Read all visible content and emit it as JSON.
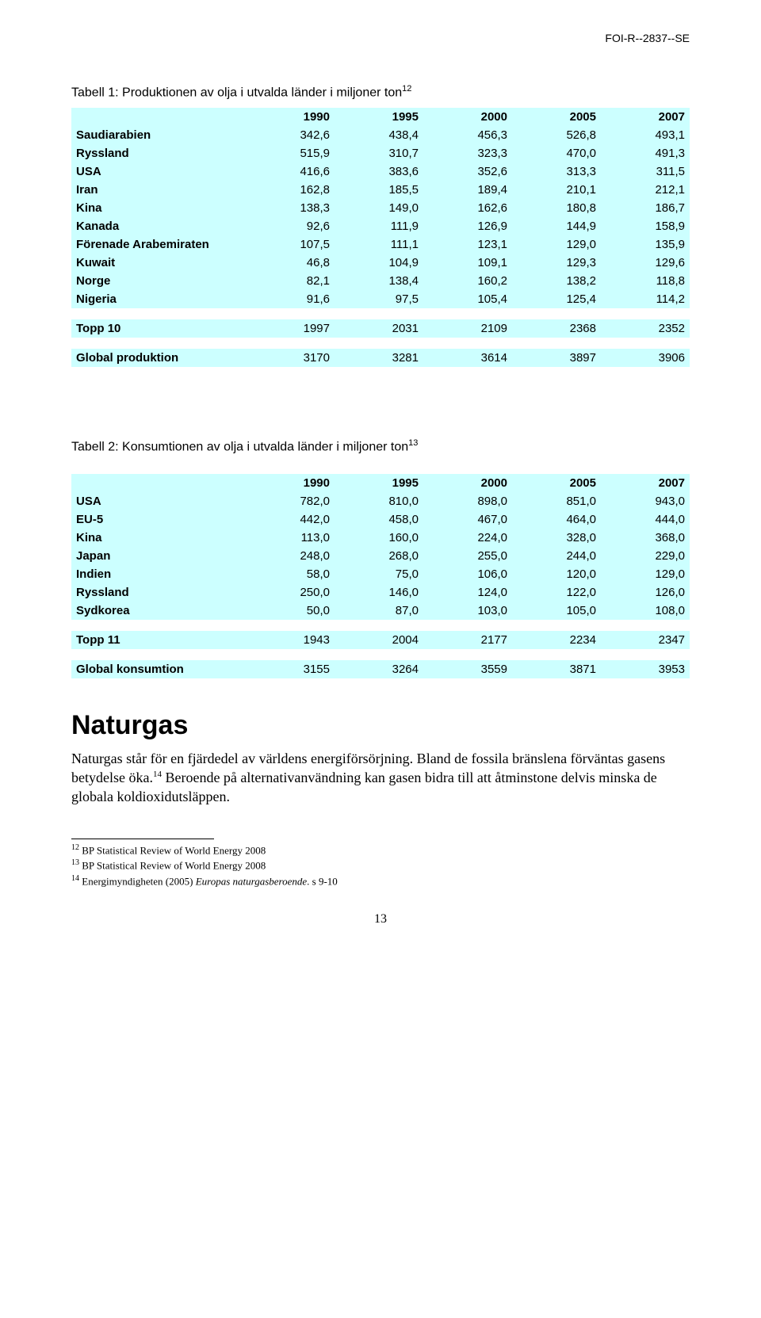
{
  "header": "FOI-R--2837--SE",
  "page_number": "13",
  "colors": {
    "row_bg": "#ccffff",
    "text": "#000000",
    "page_bg": "#ffffff"
  },
  "table1": {
    "title_prefix": "Tabell 1: Produktionen av olja i utvalda länder i miljoner ton",
    "title_sup": "12",
    "columns": [
      "1990",
      "1995",
      "2000",
      "2005",
      "2007"
    ],
    "rows": [
      {
        "label": "Saudiarabien",
        "vals": [
          "342,6",
          "438,4",
          "456,3",
          "526,8",
          "493,1"
        ]
      },
      {
        "label": "Ryssland",
        "vals": [
          "515,9",
          "310,7",
          "323,3",
          "470,0",
          "491,3"
        ]
      },
      {
        "label": "USA",
        "vals": [
          "416,6",
          "383,6",
          "352,6",
          "313,3",
          "311,5"
        ]
      },
      {
        "label": "Iran",
        "vals": [
          "162,8",
          "185,5",
          "189,4",
          "210,1",
          "212,1"
        ]
      },
      {
        "label": "Kina",
        "vals": [
          "138,3",
          "149,0",
          "162,6",
          "180,8",
          "186,7"
        ]
      },
      {
        "label": "Kanada",
        "vals": [
          "92,6",
          "111,9",
          "126,9",
          "144,9",
          "158,9"
        ]
      },
      {
        "label": "Förenade Arabemiraten",
        "vals": [
          "107,5",
          "111,1",
          "123,1",
          "129,0",
          "135,9"
        ]
      },
      {
        "label": "Kuwait",
        "vals": [
          "46,8",
          "104,9",
          "109,1",
          "129,3",
          "129,6"
        ]
      },
      {
        "label": "Norge",
        "vals": [
          "82,1",
          "138,4",
          "160,2",
          "138,2",
          "118,8"
        ]
      },
      {
        "label": "Nigeria",
        "vals": [
          "91,6",
          "97,5",
          "105,4",
          "125,4",
          "114,2"
        ]
      }
    ],
    "summary1": {
      "label": "Topp 10",
      "vals": [
        "1997",
        "2031",
        "2109",
        "2368",
        "2352"
      ]
    },
    "summary2": {
      "label": "Global produktion",
      "vals": [
        "3170",
        "3281",
        "3614",
        "3897",
        "3906"
      ]
    }
  },
  "table2": {
    "title_prefix": "Tabell 2: Konsumtionen av olja i utvalda länder i miljoner ton",
    "title_sup": "13",
    "columns": [
      "1990",
      "1995",
      "2000",
      "2005",
      "2007"
    ],
    "rows": [
      {
        "label": "USA",
        "vals": [
          "782,0",
          "810,0",
          "898,0",
          "851,0",
          "943,0"
        ]
      },
      {
        "label": "EU-5",
        "vals": [
          "442,0",
          "458,0",
          "467,0",
          "464,0",
          "444,0"
        ]
      },
      {
        "label": "Kina",
        "vals": [
          "113,0",
          "160,0",
          "224,0",
          "328,0",
          "368,0"
        ]
      },
      {
        "label": "Japan",
        "vals": [
          "248,0",
          "268,0",
          "255,0",
          "244,0",
          "229,0"
        ]
      },
      {
        "label": "Indien",
        "vals": [
          "58,0",
          "75,0",
          "106,0",
          "120,0",
          "129,0"
        ]
      },
      {
        "label": "Ryssland",
        "vals": [
          "250,0",
          "146,0",
          "124,0",
          "122,0",
          "126,0"
        ]
      },
      {
        "label": "Sydkorea",
        "vals": [
          "50,0",
          "87,0",
          "103,0",
          "105,0",
          "108,0"
        ]
      }
    ],
    "summary1": {
      "label": "Topp 11",
      "vals": [
        "1943",
        "2004",
        "2177",
        "2234",
        "2347"
      ]
    },
    "summary2": {
      "label": "Global konsumtion",
      "vals": [
        "3155",
        "3264",
        "3559",
        "3871",
        "3953"
      ]
    }
  },
  "section_heading": "Naturgas",
  "body_text": "Naturgas står för en fjärdedel av världens energiförsörjning. Bland de fossila bränslena förväntas gasens betydelse öka.14 Beroende på alternativanvändning kan gasen bidra till att åtminstone delvis minska de globala koldioxidutsläppen.",
  "body_sup_marker": "14",
  "footnotes": [
    {
      "num": "12",
      "text": "BP Statistical Review of World Energy 2008"
    },
    {
      "num": "13",
      "text": "BP Statistical Review of World Energy 2008"
    },
    {
      "num": "14",
      "text_prefix": "Energimyndigheten (2005) ",
      "text_italic": "Europas naturgasberoende",
      "text_suffix": ". s 9-10"
    }
  ]
}
